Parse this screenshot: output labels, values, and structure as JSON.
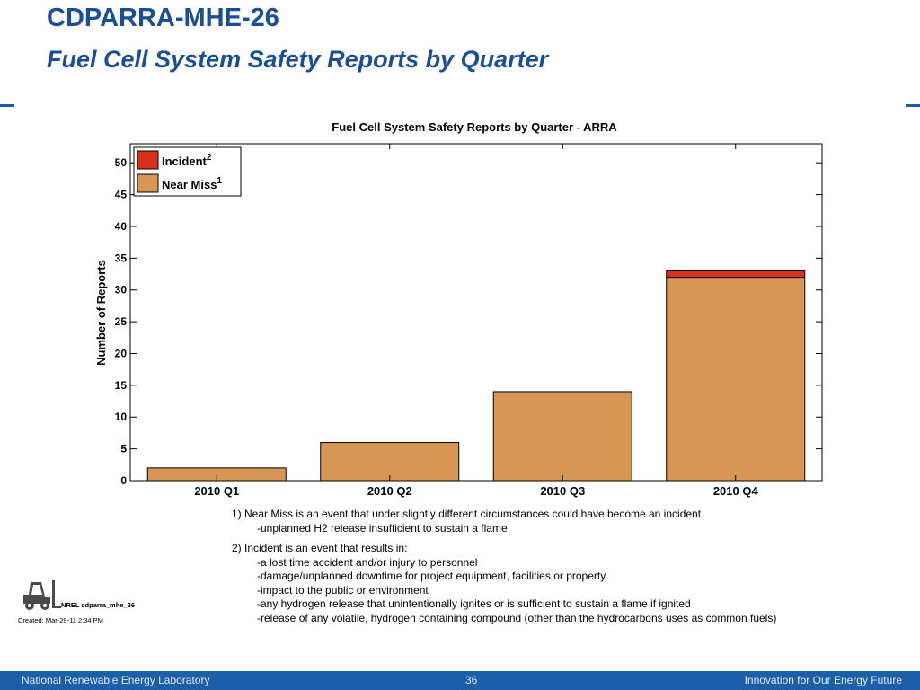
{
  "slide": {
    "title": "CDPARRA-MHE-26",
    "subtitle": "Fuel Cell System Safety Reports by Quarter"
  },
  "chart_data": {
    "type": "bar",
    "stacked": true,
    "title": "Fuel Cell System Safety Reports by Quarter - ARRA",
    "xlabel": "",
    "ylabel": "Number of Reports",
    "categories": [
      "2010 Q1",
      "2010 Q2",
      "2010 Q3",
      "2010 Q4"
    ],
    "series": [
      {
        "name": "Near Miss",
        "superscript": "1",
        "color": "#d79653",
        "values": [
          2,
          6,
          14,
          32
        ]
      },
      {
        "name": "Incident",
        "superscript": "2",
        "color": "#d9301a",
        "values": [
          0,
          0,
          0,
          1
        ]
      }
    ],
    "ylim": [
      0,
      53
    ],
    "yticks": [
      0,
      5,
      10,
      15,
      20,
      25,
      30,
      35,
      40,
      45,
      50
    ],
    "legend_position": "top-left",
    "grid": false
  },
  "notes": {
    "n1_main": "1) Near Miss is an event that under slightly different circumstances could have become an incident",
    "n1_sub": "-unplanned H2 release insufficient to sustain a flame",
    "n2_main": "2) Incident is an event that results in:",
    "n2_items": [
      "-a lost time accident and/or injury to personnel",
      "-damage/unplanned downtime for project equipment, facilities or property",
      "-impact to the public or environment",
      "-any hydrogen release that unintentionally ignites or is sufficient to sustain a flame if ignited",
      "-release of any volatile, hydrogen containing compound (other than the hydrocarbons uses as common fuels)"
    ]
  },
  "meta": {
    "logo_id": "NREL cdparra_mhe_26",
    "created": "Created: Mar-29-11  2:34 PM",
    "logo_icon": "forklift-icon"
  },
  "footer": {
    "left": "National Renewable Energy Laboratory",
    "page": "36",
    "right": "Innovation for Our Energy Future"
  }
}
